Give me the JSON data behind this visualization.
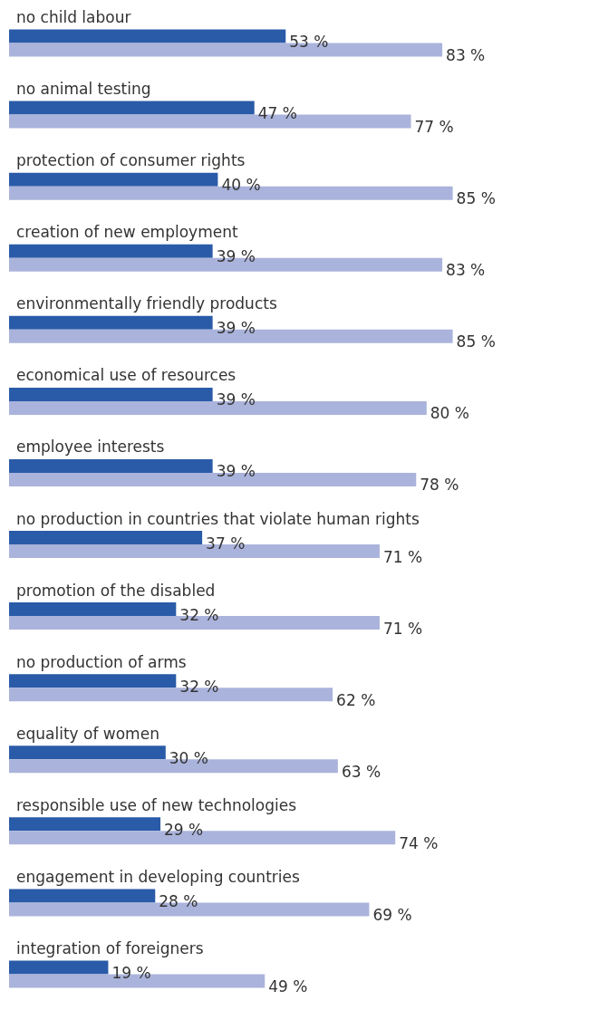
{
  "chart_data": {
    "type": "bar",
    "orientation": "horizontal",
    "categories": [
      "no child labour",
      "no animal testing",
      "protection of consumer rights",
      "creation of new employment",
      "environmentally friendly products",
      "economical use of resources",
      "employee interests",
      "no production in countries that violate human rights",
      "promotion of the disabled",
      "no production of arms",
      "equality of women",
      "responsible use of new technologies",
      "engagement in developing countries",
      "integration of foreigners"
    ],
    "series": [
      {
        "color": "#2a5ba8",
        "values": [
          53,
          47,
          40,
          39,
          39,
          39,
          39,
          37,
          32,
          32,
          30,
          29,
          28,
          19
        ],
        "value_labels": [
          "53 %",
          "47 %",
          "40 %",
          "39 %",
          "39 %",
          "39 %",
          "39 %",
          "37 %",
          "32 %",
          "32 %",
          "30 %",
          "29 %",
          "28 %",
          "19 %"
        ]
      },
      {
        "color": "#aab3db",
        "values": [
          83,
          77,
          85,
          83,
          85,
          80,
          78,
          71,
          71,
          62,
          63,
          74,
          69,
          49
        ],
        "value_labels": [
          "83 %",
          "77 %",
          "85 %",
          "83 %",
          "85 %",
          "80 %",
          "78 %",
          "71 %",
          "71 %",
          "62 %",
          "63 %",
          "74 %",
          "69 %",
          "49 %"
        ]
      }
    ]
  }
}
